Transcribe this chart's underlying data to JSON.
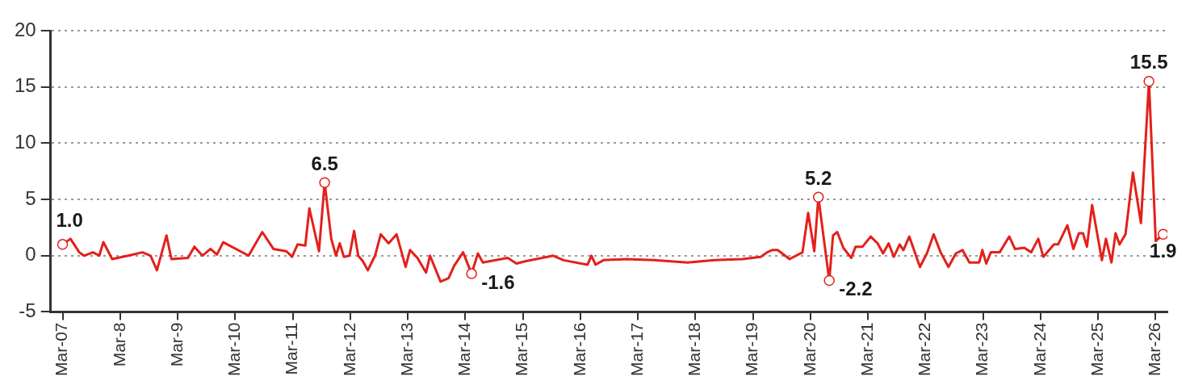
{
  "chart_data": {
    "type": "line",
    "color": "#e3201b",
    "grid": "y",
    "x": [
      "2007-03-01",
      "2007-04-20",
      "2007-06-15",
      "2007-07-15",
      "2007-09-10",
      "2007-10-20",
      "2007-11-15",
      "2008-01-10",
      "2008-04-20",
      "2008-07-20",
      "2008-09-10",
      "2008-10-20",
      "2008-12-20",
      "2009-01-20",
      "2009-05-05",
      "2009-06-15",
      "2009-08-05",
      "2009-09-25",
      "2009-11-05",
      "2009-12-15",
      "2010-05-25",
      "2010-08-20",
      "2010-10-30",
      "2011-01-20",
      "2011-02-25",
      "2011-04-01",
      "2011-05-20",
      "2011-06-15",
      "2011-08-15",
      "2011-09-20",
      "2011-11-01",
      "2011-12-01",
      "2011-12-25",
      "2012-01-20",
      "2012-02-25",
      "2012-03-25",
      "2012-04-20",
      "2012-05-20",
      "2012-06-20",
      "2012-08-05",
      "2012-09-10",
      "2012-10-30",
      "2012-12-20",
      "2013-02-15",
      "2013-03-15",
      "2013-05-01",
      "2013-06-25",
      "2013-07-20",
      "2013-09-25",
      "2013-11-15",
      "2013-12-20",
      "2014-02-15",
      "2014-04-10",
      "2014-05-20",
      "2014-06-20",
      "2014-11-25",
      "2015-01-20",
      "2015-03-15",
      "2015-05-25",
      "2015-09-10",
      "2015-11-15",
      "2016-04-15",
      "2016-05-10",
      "2016-06-05",
      "2016-07-25",
      "2016-12-15",
      "2017-06-10",
      "2018-01-10",
      "2018-07-01",
      "2018-12-25",
      "2019-04-20",
      "2019-05-30",
      "2019-07-01",
      "2019-08-05",
      "2019-10-20",
      "2020-01-10",
      "2020-02-15",
      "2020-03-25",
      "2020-04-20",
      "2020-06-28",
      "2020-07-22",
      "2020-08-18",
      "2020-09-25",
      "2020-11-15",
      "2020-12-12",
      "2021-01-25",
      "2021-03-18",
      "2021-05-01",
      "2021-06-05",
      "2021-07-10",
      "2021-08-12",
      "2021-09-18",
      "2021-10-12",
      "2021-11-18",
      "2022-01-25",
      "2022-03-10",
      "2022-04-22",
      "2022-06-05",
      "2022-07-25",
      "2022-09-10",
      "2022-10-22",
      "2022-12-05",
      "2023-02-05",
      "2023-02-25",
      "2023-03-22",
      "2023-04-20",
      "2023-06-15",
      "2023-08-15",
      "2023-09-20",
      "2023-11-18",
      "2024-01-01",
      "2024-02-15",
      "2024-03-18",
      "2024-05-25",
      "2024-06-20",
      "2024-08-18",
      "2024-09-25",
      "2024-10-30",
      "2024-11-25",
      "2024-12-20",
      "2025-01-22",
      "2025-03-25",
      "2025-04-20",
      "2025-05-25",
      "2025-06-20",
      "2025-07-15",
      "2025-08-22",
      "2025-10-08",
      "2025-11-28",
      "2026-01-18",
      "2026-03-02",
      "2026-04-18"
    ],
    "values": [
      1.0,
      1.5,
      0.3,
      0.0,
      0.3,
      0.0,
      1.2,
      -0.3,
      0.0,
      0.3,
      0.0,
      -1.3,
      1.8,
      -0.3,
      -0.2,
      0.8,
      0.0,
      0.6,
      0.1,
      1.2,
      0.0,
      2.1,
      0.6,
      0.4,
      -0.1,
      1.0,
      0.9,
      4.2,
      0.4,
      6.5,
      1.5,
      0.0,
      1.1,
      -0.1,
      0.0,
      2.2,
      0.0,
      -0.5,
      -1.3,
      0.0,
      1.9,
      1.1,
      1.9,
      -1.0,
      0.5,
      -0.2,
      -1.5,
      0.0,
      -2.3,
      -2.0,
      -0.9,
      0.3,
      -1.6,
      0.2,
      -0.6,
      -0.2,
      -0.7,
      -0.5,
      -0.3,
      0.0,
      -0.4,
      -0.8,
      0.0,
      -0.8,
      -0.4,
      -0.3,
      -0.4,
      -0.6,
      -0.4,
      -0.3,
      -0.1,
      0.3,
      0.5,
      0.5,
      -0.3,
      0.3,
      3.8,
      0.4,
      5.2,
      -2.2,
      1.8,
      2.1,
      0.7,
      -0.2,
      0.8,
      0.8,
      1.7,
      1.1,
      0.2,
      1.1,
      -0.1,
      1.0,
      0.5,
      1.7,
      -1.0,
      0.2,
      1.9,
      0.3,
      -1.0,
      0.2,
      0.5,
      -0.6,
      -0.6,
      0.5,
      -0.7,
      0.3,
      0.3,
      1.7,
      0.6,
      0.7,
      0.3,
      1.5,
      -0.1,
      1.0,
      1.0,
      2.7,
      0.6,
      2.0,
      2.0,
      0.8,
      4.5,
      -0.4,
      1.5,
      -0.6,
      2.0,
      1.0,
      1.9,
      7.4,
      2.9,
      15.5,
      1.3,
      1.9
    ],
    "value_labels": [
      "1.0",
      null,
      null,
      null,
      null,
      null,
      null,
      null,
      null,
      null,
      null,
      null,
      null,
      null,
      null,
      null,
      null,
      null,
      null,
      null,
      null,
      null,
      null,
      null,
      null,
      null,
      null,
      null,
      null,
      "6.5",
      null,
      null,
      null,
      null,
      null,
      null,
      null,
      null,
      null,
      null,
      null,
      null,
      null,
      null,
      null,
      null,
      null,
      null,
      null,
      null,
      null,
      null,
      "-1.6",
      null,
      null,
      null,
      null,
      null,
      null,
      null,
      null,
      null,
      null,
      null,
      null,
      null,
      null,
      null,
      null,
      null,
      null,
      null,
      null,
      null,
      null,
      null,
      null,
      null,
      "5.2",
      "-2.2",
      null,
      null,
      null,
      null,
      null,
      null,
      null,
      null,
      null,
      null,
      null,
      null,
      null,
      null,
      null,
      null,
      null,
      null,
      null,
      null,
      null,
      null,
      null,
      null,
      null,
      null,
      null,
      null,
      null,
      null,
      null,
      null,
      null,
      null,
      null,
      null,
      null,
      null,
      null,
      null,
      null,
      null,
      null,
      null,
      null,
      null,
      null,
      null,
      null,
      "15.5",
      null,
      "1.9"
    ],
    "xlim": [
      "2006-12-15",
      "2026-05-15"
    ],
    "xticks": [
      {
        "value": "2007-03-01",
        "label": "Mar-07"
      },
      {
        "value": "2008-03-01",
        "label": "Mar-8"
      },
      {
        "value": "2009-03-01",
        "label": "Mar-9"
      },
      {
        "value": "2010-03-01",
        "label": "Mar-10"
      },
      {
        "value": "2011-03-01",
        "label": "Mar-11"
      },
      {
        "value": "2012-03-01",
        "label": "Mar-12"
      },
      {
        "value": "2013-03-01",
        "label": "Mar-13"
      },
      {
        "value": "2014-03-01",
        "label": "Mar-14"
      },
      {
        "value": "2015-03-01",
        "label": "Mar-15"
      },
      {
        "value": "2016-03-01",
        "label": "Mar-16"
      },
      {
        "value": "2017-03-01",
        "label": "Mar-17"
      },
      {
        "value": "2018-03-01",
        "label": "Mar-18"
      },
      {
        "value": "2019-03-01",
        "label": "Mar-19"
      },
      {
        "value": "2020-03-01",
        "label": "Mar-20"
      },
      {
        "value": "2021-03-01",
        "label": "Mar-21"
      },
      {
        "value": "2022-03-01",
        "label": "Mar-22"
      },
      {
        "value": "2023-03-01",
        "label": "Mar-23"
      },
      {
        "value": "2024-03-01",
        "label": "Mar-24"
      },
      {
        "value": "2025-03-01",
        "label": "Mar-25"
      },
      {
        "value": "2026-03-01",
        "label": "Mar-26"
      }
    ],
    "ylim": [
      -5,
      20
    ],
    "yticks": [
      -5,
      0,
      5,
      10,
      15,
      20
    ]
  }
}
